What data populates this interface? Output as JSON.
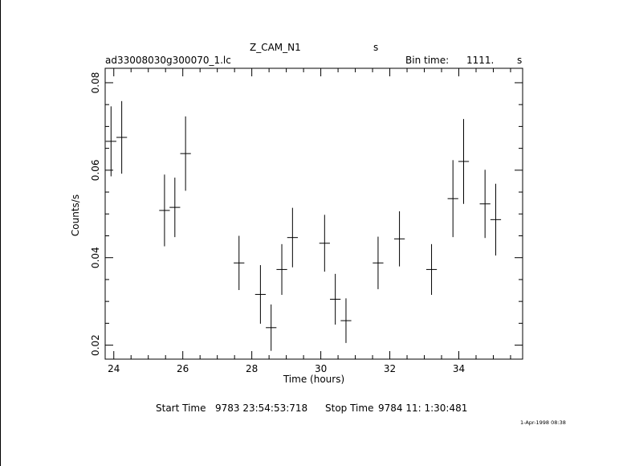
{
  "header": {
    "object": "Z_CAM_N1",
    "object_unit": "s",
    "filename": "ad33008030g300070_1.lc",
    "bin_label": "Bin time:",
    "bin_value": "1111.",
    "bin_unit": "s"
  },
  "footer": {
    "start_label": "Start Time",
    "start_value": "9783 23:54:53:718",
    "stop_label": "Stop Time",
    "stop_value": "9784 11: 1:30:481",
    "date_stamp": "1-Apr-1998 08:38"
  },
  "chart_data": {
    "type": "scatter",
    "xlabel": "Time (hours)",
    "ylabel": "Counts/s",
    "xlim": [
      23.75,
      35.85
    ],
    "ylim": [
      0.0168,
      0.0833
    ],
    "x_ticks": [
      24,
      26,
      28,
      30,
      32,
      34
    ],
    "x_tick_labels": [
      "24",
      "26",
      "28",
      "30",
      "32",
      "34"
    ],
    "y_ticks": [
      0.02,
      0.04,
      0.06,
      0.08
    ],
    "y_tick_labels": [
      "0.02",
      "0.04",
      "0.06",
      "0.08"
    ],
    "x_minor_step": 0.5,
    "y_minor_step": 0.005,
    "x_half_bin": 0.154,
    "series": [
      {
        "points": [
          {
            "x": 23.92,
            "y": 0.0666,
            "err": 0.008
          },
          {
            "x": 24.23,
            "y": 0.0675,
            "err": 0.0083
          },
          {
            "x": 25.47,
            "y": 0.0508,
            "err": 0.0082
          },
          {
            "x": 25.77,
            "y": 0.0515,
            "err": 0.0068
          },
          {
            "x": 26.08,
            "y": 0.0638,
            "err": 0.0085
          },
          {
            "x": 27.63,
            "y": 0.0388,
            "err": 0.0062
          },
          {
            "x": 28.25,
            "y": 0.0316,
            "err": 0.0067
          },
          {
            "x": 28.56,
            "y": 0.024,
            "err": 0.0053
          },
          {
            "x": 28.87,
            "y": 0.0373,
            "err": 0.0058
          },
          {
            "x": 29.18,
            "y": 0.0446,
            "err": 0.0068
          },
          {
            "x": 30.11,
            "y": 0.0433,
            "err": 0.0065
          },
          {
            "x": 30.42,
            "y": 0.0305,
            "err": 0.0058
          },
          {
            "x": 30.73,
            "y": 0.0256,
            "err": 0.0051
          },
          {
            "x": 31.66,
            "y": 0.0388,
            "err": 0.006
          },
          {
            "x": 32.28,
            "y": 0.0443,
            "err": 0.0063
          },
          {
            "x": 33.21,
            "y": 0.0373,
            "err": 0.0058
          },
          {
            "x": 33.83,
            "y": 0.0535,
            "err": 0.0088
          },
          {
            "x": 34.14,
            "y": 0.062,
            "err": 0.0097
          },
          {
            "x": 34.76,
            "y": 0.0523,
            "err": 0.0078
          },
          {
            "x": 35.07,
            "y": 0.0487,
            "err": 0.0082
          }
        ]
      }
    ]
  }
}
